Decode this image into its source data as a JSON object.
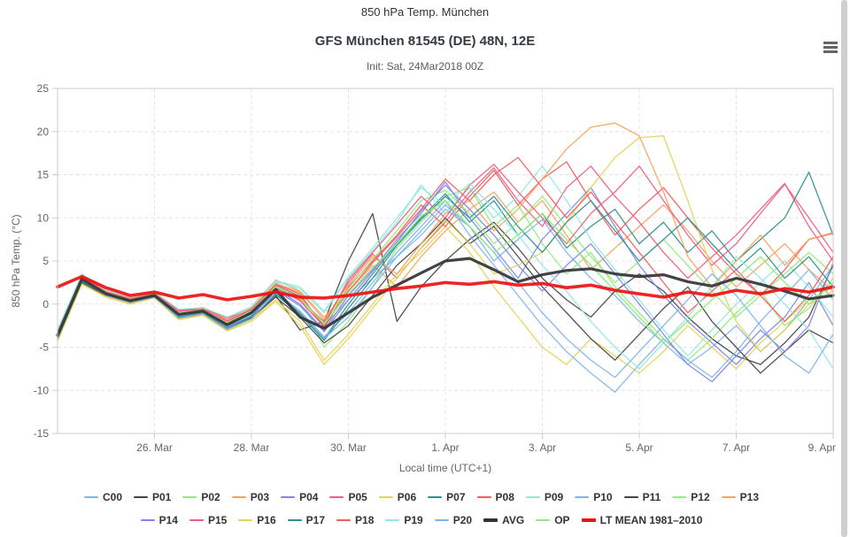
{
  "page": {
    "suptitle": "850 hPa Temp. München",
    "title": "GFS München 81545 (DE) 48N, 12E",
    "subtitle": "Init: Sat, 24Mar2018 00Z"
  },
  "icons": {
    "context_menu": "hamburger-menu-icon"
  },
  "colors": {
    "background": "#ffffff",
    "plot_border": "#cccccc",
    "gridline": "#e4e4e4",
    "tick": "#cccccc",
    "tick_label": "#666666",
    "title": "#333a40",
    "legend_label": "#333333",
    "avg_line": "#333337",
    "lt_mean_line": "#ee1111",
    "scrollbar": "#cfcfcf",
    "menu_icon": "#666666"
  },
  "chart_data": {
    "type": "line",
    "title": "GFS München 81545 (DE) 48N, 12E",
    "suptitle": "850 hPa Temp. München",
    "subtitle": "Init: Sat, 24Mar2018 00Z",
    "xlabel": "Local time (UTC+1)",
    "ylabel": "850 hPa Temp. (°C)",
    "ylim": [
      -15,
      25
    ],
    "ytick_interval": 5,
    "grid": "dashed, both axes",
    "legend_position": "bottom, two rows",
    "legend_rows": [
      14,
      10
    ],
    "x_unit": "days since init Sat 24Mar2018 00Z, plotted to 9. Apr",
    "x_days": [
      0,
      0.5,
      1,
      1.5,
      2,
      2.5,
      3,
      3.5,
      4,
      4.5,
      5,
      5.5,
      6,
      6.5,
      7,
      7.5,
      8,
      8.5,
      9,
      9.5,
      10,
      10.5,
      11,
      11.5,
      12,
      12.5,
      13,
      13.5,
      14,
      14.5,
      15,
      15.5,
      16
    ],
    "xticks": [
      {
        "day": 2,
        "label": "26. Mar"
      },
      {
        "day": 4,
        "label": "28. Mar"
      },
      {
        "day": 6,
        "label": "30. Mar"
      },
      {
        "day": 8,
        "label": "1. Apr"
      },
      {
        "day": 10,
        "label": "3. Apr"
      },
      {
        "day": 12,
        "label": "5. Apr"
      },
      {
        "day": 14,
        "label": "7. Apr"
      },
      {
        "day": 16,
        "label": "9. Apr"
      }
    ],
    "series": [
      {
        "name": "C00",
        "color": "#7cb5ec",
        "width": 1.3,
        "values": [
          -3.2,
          3.1,
          1.0,
          0.6,
          1.1,
          -1.0,
          -0.6,
          -2.0,
          -0.5,
          2.2,
          0.8,
          -2.5,
          0.5,
          3.0,
          5.5,
          8.0,
          11.0,
          9.0,
          5.0,
          7.5,
          9.8,
          6.0,
          3.0,
          1.0,
          -2.0,
          -4.5,
          -7.0,
          -5.0,
          -2.5,
          -5.5,
          -3.0,
          0.5,
          4.5
        ]
      },
      {
        "name": "P01",
        "color": "#434348",
        "width": 1.3,
        "values": [
          -4.0,
          2.6,
          1.2,
          0.2,
          0.9,
          -1.5,
          -1.0,
          -2.8,
          -1.5,
          1.0,
          -3.0,
          -2.0,
          5.0,
          10.5,
          -2.0,
          2.0,
          5.0,
          7.5,
          9.5,
          6.5,
          3.0,
          0.5,
          -1.5,
          1.5,
          3.5,
          1.5,
          -1.5,
          -4.0,
          -6.0,
          -7.0,
          -4.5,
          -1.5,
          4.5
        ]
      },
      {
        "name": "P02",
        "color": "#90ed7d",
        "width": 1.3,
        "values": [
          -3.8,
          2.9,
          1.4,
          0.3,
          1.2,
          -1.4,
          -0.7,
          -2.6,
          -1.2,
          2.5,
          1.0,
          -5.0,
          -2.0,
          2.0,
          6.5,
          9.5,
          12.5,
          13.5,
          9.0,
          11.5,
          7.0,
          3.5,
          6.0,
          2.0,
          -1.0,
          -4.0,
          -6.5,
          -4.0,
          -1.0,
          1.5,
          -2.5,
          -0.5,
          3.0
        ]
      },
      {
        "name": "P03",
        "color": "#f7a35c",
        "width": 1.3,
        "values": [
          -3.3,
          3.3,
          1.5,
          0.8,
          1.3,
          -0.8,
          -0.4,
          -1.8,
          -0.3,
          2.8,
          1.5,
          -1.5,
          1.5,
          4.5,
          2.0,
          5.5,
          8.5,
          11.0,
          13.0,
          9.5,
          12.0,
          8.0,
          4.0,
          6.5,
          9.0,
          11.5,
          8.5,
          5.0,
          2.0,
          4.5,
          7.0,
          4.0,
          1.5
        ]
      },
      {
        "name": "P04",
        "color": "#8085e9",
        "width": 1.3,
        "values": [
          -3.6,
          3.0,
          1.1,
          0.5,
          1.0,
          -1.1,
          -0.9,
          -2.2,
          -0.8,
          1.8,
          0.0,
          -3.0,
          1.0,
          4.0,
          7.5,
          10.5,
          14.2,
          10.0,
          6.5,
          3.0,
          7.5,
          10.5,
          13.5,
          9.0,
          4.5,
          1.0,
          -2.0,
          -4.5,
          -7.0,
          -4.0,
          -1.5,
          2.5,
          -2.5
        ]
      },
      {
        "name": "P05",
        "color": "#f15c80",
        "width": 1.3,
        "values": [
          -3.0,
          3.4,
          1.6,
          0.7,
          1.4,
          -0.7,
          -0.5,
          -1.6,
          -0.6,
          2.0,
          0.5,
          -2.0,
          2.5,
          5.8,
          3.0,
          6.5,
          9.5,
          13.0,
          15.8,
          12.0,
          9.0,
          13.5,
          16.0,
          12.5,
          9.5,
          6.0,
          3.0,
          5.5,
          8.0,
          11.0,
          14.0,
          9.0,
          5.0
        ]
      },
      {
        "name": "P06",
        "color": "#e4d354",
        "width": 1.3,
        "values": [
          -4.2,
          2.4,
          0.9,
          0.1,
          0.8,
          -1.7,
          -1.2,
          -3.0,
          -1.8,
          0.5,
          -2.0,
          -6.5,
          -3.5,
          0.0,
          3.5,
          6.0,
          9.0,
          6.0,
          2.0,
          -1.5,
          -5.0,
          -7.0,
          -4.0,
          -6.0,
          -8.0,
          -5.5,
          -2.5,
          -5.0,
          -7.5,
          -4.5,
          -2.0,
          0.5,
          2.0
        ]
      },
      {
        "name": "P07",
        "color": "#2b908f",
        "width": 1.3,
        "values": [
          -3.9,
          2.7,
          1.3,
          0.4,
          1.1,
          -1.3,
          -0.8,
          -2.5,
          -1.1,
          1.2,
          -1.0,
          -4.0,
          0.0,
          3.5,
          7.0,
          10.0,
          12.8,
          9.5,
          12.0,
          8.0,
          10.5,
          6.5,
          9.0,
          11.0,
          7.0,
          9.5,
          6.0,
          8.5,
          5.0,
          7.5,
          10.0,
          15.3,
          8.0
        ]
      },
      {
        "name": "P08",
        "color": "#f45b5b",
        "width": 1.3,
        "values": [
          -3.4,
          3.2,
          1.4,
          0.6,
          1.2,
          -0.9,
          -0.6,
          -2.1,
          -0.7,
          2.3,
          1.2,
          -2.8,
          2.0,
          5.0,
          8.0,
          11.5,
          9.0,
          12.5,
          15.5,
          11.5,
          14.5,
          16.5,
          12.0,
          8.0,
          11.0,
          13.5,
          10.0,
          6.5,
          3.5,
          1.0,
          4.0,
          7.5,
          8.2
        ]
      },
      {
        "name": "P09",
        "color": "#91e8e1",
        "width": 1.3,
        "values": [
          -3.1,
          3.0,
          1.2,
          0.5,
          1.0,
          -1.0,
          -0.7,
          -1.9,
          -0.4,
          2.6,
          1.8,
          -1.0,
          3.0,
          6.2,
          9.5,
          13.8,
          10.5,
          13.5,
          10.0,
          12.5,
          16.0,
          12.0,
          7.5,
          4.0,
          0.5,
          -3.0,
          -6.0,
          -3.0,
          0.0,
          2.5,
          5.0,
          2.0,
          -1.5
        ]
      },
      {
        "name": "P10",
        "color": "#7cb5ec",
        "width": 1.3,
        "values": [
          -3.7,
          2.8,
          1.1,
          0.3,
          0.9,
          -1.4,
          -1.0,
          -2.7,
          -1.3,
          1.4,
          -0.8,
          -3.8,
          -1.0,
          2.5,
          6.0,
          9.0,
          12.0,
          8.0,
          4.5,
          1.0,
          -2.5,
          -5.5,
          -8.0,
          -10.2,
          -7.0,
          -4.0,
          -6.5,
          -8.5,
          -5.5,
          -2.0,
          1.0,
          4.0,
          0.5
        ]
      },
      {
        "name": "P11",
        "color": "#434348",
        "width": 1.3,
        "values": [
          -4.1,
          2.5,
          1.0,
          0.2,
          0.8,
          -1.6,
          -1.1,
          -2.9,
          -1.6,
          0.8,
          -1.5,
          -4.5,
          -2.5,
          1.0,
          4.5,
          7.0,
          10.0,
          7.0,
          9.0,
          5.5,
          2.0,
          -1.0,
          -4.0,
          -6.5,
          -3.5,
          -0.5,
          2.0,
          -2.0,
          -5.0,
          -8.0,
          -5.5,
          -3.0,
          -4.5
        ]
      },
      {
        "name": "P12",
        "color": "#90ed7d",
        "width": 1.3,
        "values": [
          -3.5,
          3.1,
          1.3,
          0.5,
          1.1,
          -1.2,
          -0.8,
          -2.4,
          -0.9,
          2.1,
          0.6,
          -2.2,
          1.8,
          5.2,
          8.5,
          12.0,
          13.2,
          10.5,
          7.0,
          9.5,
          12.5,
          9.0,
          5.5,
          2.5,
          5.0,
          7.5,
          4.5,
          1.5,
          -1.5,
          1.0,
          3.5,
          6.0,
          3.5
        ]
      },
      {
        "name": "P13",
        "color": "#f7a35c",
        "width": 1.3,
        "values": [
          -3.2,
          3.3,
          1.5,
          0.7,
          1.3,
          -0.9,
          -0.5,
          -2.0,
          -0.5,
          2.4,
          1.4,
          -1.8,
          2.2,
          5.5,
          3.5,
          7.0,
          10.5,
          12.0,
          8.5,
          11.0,
          14.5,
          18.0,
          20.5,
          21.0,
          19.5,
          13.0,
          5.5,
          2.0,
          5.0,
          8.0,
          4.5,
          7.5,
          8.3
        ]
      },
      {
        "name": "P14",
        "color": "#8085e9",
        "width": 1.3,
        "values": [
          -3.8,
          2.9,
          1.2,
          0.4,
          1.0,
          -1.3,
          -0.9,
          -2.6,
          -1.4,
          1.6,
          -0.2,
          -3.2,
          0.5,
          3.8,
          7.2,
          10.8,
          13.8,
          11.0,
          8.0,
          4.5,
          1.5,
          4.5,
          7.0,
          3.5,
          0.0,
          -3.5,
          -7.0,
          -9.0,
          -6.0,
          -3.0,
          -5.5,
          -2.5,
          4.8
        ]
      },
      {
        "name": "P15",
        "color": "#f15c80",
        "width": 1.3,
        "values": [
          -3.3,
          3.2,
          1.4,
          0.6,
          1.2,
          -0.8,
          -0.6,
          -1.9,
          -0.6,
          2.2,
          0.9,
          -2.4,
          2.8,
          6.0,
          9.2,
          12.5,
          10.0,
          13.8,
          16.2,
          13.0,
          10.0,
          7.0,
          10.5,
          13.0,
          16.0,
          12.0,
          8.0,
          4.5,
          7.0,
          10.5,
          13.9,
          10.0,
          6.0
        ]
      },
      {
        "name": "P16",
        "color": "#e4d354",
        "width": 1.3,
        "values": [
          -4.3,
          2.3,
          0.8,
          0.0,
          0.7,
          -1.8,
          -1.3,
          -3.1,
          -2.0,
          0.3,
          -2.5,
          -7.0,
          -4.0,
          -0.5,
          3.0,
          6.5,
          9.8,
          7.0,
          3.5,
          4.5,
          6.0,
          9.5,
          13.5,
          17.0,
          19.3,
          19.5,
          12.0,
          4.0,
          -2.0,
          -5.5,
          -3.0,
          0.0,
          1.5
        ]
      },
      {
        "name": "P17",
        "color": "#2b908f",
        "width": 1.3,
        "values": [
          -4.0,
          2.6,
          1.1,
          0.3,
          0.9,
          -1.5,
          -1.0,
          -2.8,
          -1.5,
          1.1,
          -1.2,
          -4.2,
          -0.5,
          3.0,
          6.8,
          9.8,
          12.5,
          10.0,
          12.5,
          9.0,
          6.0,
          9.5,
          12.0,
          8.5,
          5.0,
          7.5,
          10.0,
          7.0,
          4.0,
          6.5,
          3.0,
          5.5,
          2.0
        ]
      },
      {
        "name": "P18",
        "color": "#f45b5b",
        "width": 1.3,
        "values": [
          -3.5,
          3.1,
          1.3,
          0.5,
          1.1,
          -1.1,
          -0.7,
          -2.3,
          -0.9,
          1.9,
          0.4,
          -2.6,
          1.5,
          4.8,
          7.8,
          11.0,
          14.5,
          12.0,
          15.0,
          17.0,
          13.5,
          10.0,
          13.0,
          9.5,
          6.0,
          2.5,
          -1.0,
          1.5,
          4.0,
          1.0,
          -2.0,
          1.0,
          5.5
        ]
      },
      {
        "name": "P19",
        "color": "#91e8e1",
        "width": 1.3,
        "values": [
          -3.0,
          3.5,
          1.6,
          0.8,
          1.4,
          -0.6,
          -0.4,
          -1.5,
          -0.3,
          2.7,
          2.0,
          -0.8,
          3.2,
          6.5,
          10.0,
          13.5,
          11.5,
          14.0,
          11.0,
          8.0,
          4.5,
          1.5,
          -2.0,
          -5.0,
          -7.5,
          -4.5,
          -1.5,
          2.0,
          5.5,
          3.0,
          0.0,
          -3.0,
          -7.5
        ]
      },
      {
        "name": "P20",
        "color": "#7cb5ec",
        "width": 1.3,
        "values": [
          -3.6,
          2.8,
          1.0,
          0.2,
          0.8,
          -1.6,
          -1.1,
          -2.9,
          -1.7,
          1.3,
          -0.9,
          -4.0,
          -1.5,
          2.0,
          5.5,
          8.5,
          11.5,
          9.0,
          6.0,
          2.5,
          -1.0,
          -4.0,
          -6.5,
          -8.5,
          -5.5,
          -2.5,
          0.5,
          3.5,
          1.0,
          -2.5,
          -6.0,
          -8.0,
          -3.5
        ]
      },
      {
        "name": "AVG",
        "color": "#333337",
        "width": 3.2,
        "values": [
          -3.6,
          2.9,
          1.2,
          0.4,
          1.0,
          -1.2,
          -0.8,
          -2.4,
          -1.0,
          1.7,
          -1.5,
          -2.8,
          -1.0,
          0.8,
          2.2,
          3.6,
          5.0,
          5.3,
          4.0,
          2.6,
          3.4,
          3.9,
          4.1,
          3.5,
          3.2,
          3.4,
          2.6,
          2.1,
          3.0,
          2.3,
          1.5,
          0.6,
          1.0
        ]
      },
      {
        "name": "OP",
        "color": "#90ed7d",
        "width": 1.5,
        "values": [
          -3.4,
          3.0,
          1.3,
          0.5,
          1.1,
          -1.1,
          -0.7,
          -2.2,
          -0.8,
          2.0,
          0.7,
          -2.3,
          1.2,
          4.2,
          7.0,
          10.2,
          12.0,
          9.0,
          6.0,
          8.0,
          10.5,
          7.5,
          4.5,
          1.5,
          -1.5,
          -4.5,
          -2.0,
          0.5,
          3.0,
          5.5,
          2.5,
          0.0,
          2.5
        ]
      },
      {
        "name": "LT MEAN 1981–2010",
        "color": "#ee1111",
        "width": 3.6,
        "values": [
          2.0,
          3.2,
          1.9,
          1.0,
          1.4,
          0.7,
          1.1,
          0.5,
          0.9,
          1.4,
          0.8,
          0.7,
          1.0,
          1.4,
          1.8,
          2.1,
          2.5,
          2.3,
          2.6,
          2.2,
          2.4,
          1.9,
          2.2,
          1.6,
          1.2,
          0.8,
          1.4,
          1.0,
          1.6,
          1.2,
          1.8,
          1.4,
          2.0
        ]
      }
    ]
  }
}
